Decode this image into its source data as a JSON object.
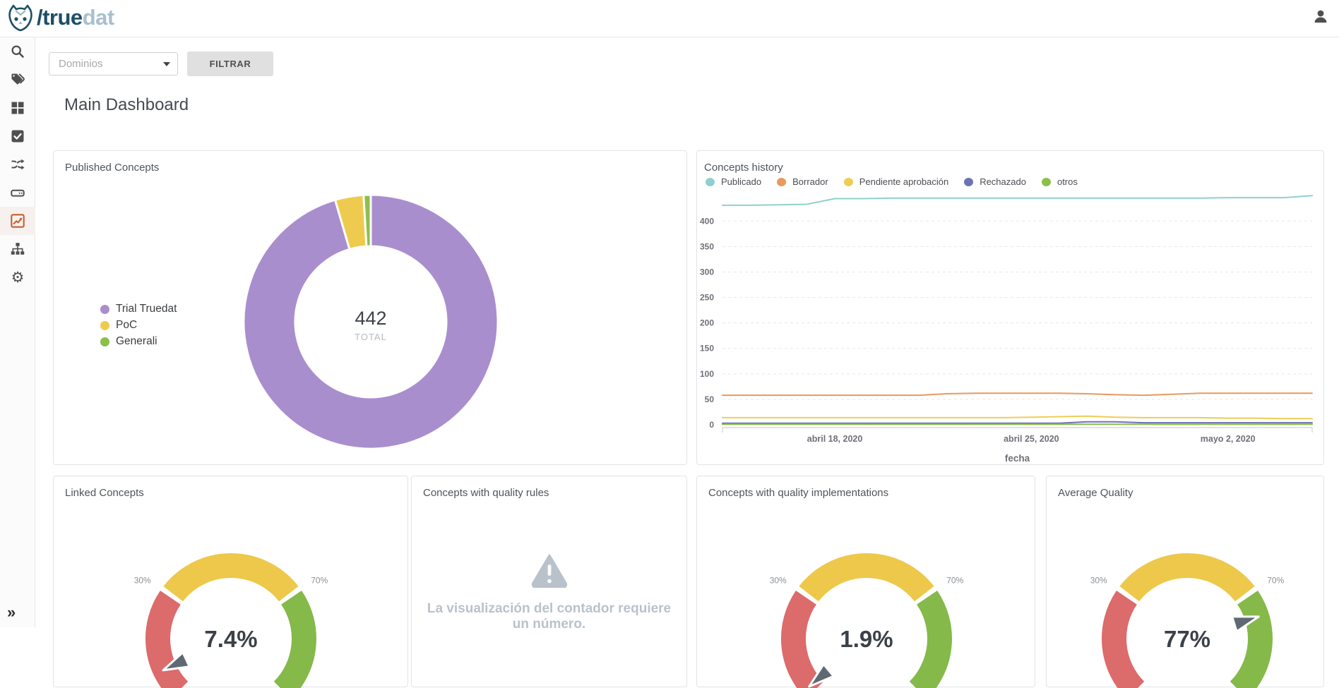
{
  "header": {
    "logo_slash_true": "/true",
    "logo_dat": "dat"
  },
  "sidebar": {
    "items": [
      {
        "name": "search",
        "icon": "search-icon",
        "active": false
      },
      {
        "name": "concepts",
        "icon": "tags-icon",
        "active": false
      },
      {
        "name": "structures",
        "icon": "grid-icon",
        "active": false
      },
      {
        "name": "rules",
        "icon": "check-square-icon",
        "active": false
      },
      {
        "name": "lineage",
        "icon": "shuffle-icon",
        "active": false
      },
      {
        "name": "sources",
        "icon": "drive-icon",
        "active": false
      },
      {
        "name": "dashboards",
        "icon": "line-chart-icon",
        "active": true
      },
      {
        "name": "organization",
        "icon": "sitemap-icon",
        "active": false
      },
      {
        "name": "settings",
        "icon": "gear-icon",
        "active": false
      }
    ],
    "expand_label": "»"
  },
  "toolbar": {
    "domain_placeholder": "Dominios",
    "filter_label": "FILTRAR"
  },
  "page_title": "Main Dashboard",
  "chart_data": [
    {
      "id": "published_concepts",
      "type": "pie",
      "title": "Published Concepts",
      "center_value": "442",
      "center_label": "TOTAL",
      "legend_position": "left",
      "series": [
        {
          "label": "Trial Truedat",
          "value": 422,
          "color": "#a98ecd"
        },
        {
          "label": "PoC",
          "value": 16,
          "color": "#eecb4e"
        },
        {
          "label": "Generali",
          "value": 4,
          "color": "#8cbf4b"
        }
      ]
    },
    {
      "id": "concepts_history",
      "type": "line",
      "title": "Concepts history",
      "xlabel": "fecha",
      "ylim": [
        0,
        460
      ],
      "yticks": [
        0,
        50,
        100,
        150,
        200,
        250,
        300,
        350,
        400
      ],
      "grid": true,
      "legend_position": "top",
      "xtick_indices": [
        4,
        11,
        18
      ],
      "xtick_labels": [
        "abril 18, 2020",
        "abril 25, 2020",
        "mayo 2, 2020"
      ],
      "series": [
        {
          "name": "Publicado",
          "color": "#8ed1ce",
          "values": [
            431,
            431,
            432,
            433,
            444,
            444,
            445,
            445,
            445,
            445,
            445,
            445,
            445,
            445,
            445,
            445,
            445,
            445,
            446,
            446,
            446,
            450
          ]
        },
        {
          "name": "Borrador",
          "color": "#e8995f",
          "values": [
            58,
            58,
            58,
            58,
            58,
            58,
            58,
            58,
            61,
            62,
            62,
            62,
            62,
            61,
            59,
            58,
            60,
            62,
            62,
            62,
            62,
            62
          ]
        },
        {
          "name": "Pendiente aprobación",
          "color": "#eecd55",
          "values": [
            14,
            14,
            14,
            14,
            14,
            14,
            14,
            14,
            14,
            14,
            14,
            15,
            16,
            17,
            15,
            14,
            14,
            14,
            13,
            13,
            12,
            12
          ]
        },
        {
          "name": "Rechazado",
          "color": "#6d72b3",
          "values": [
            3,
            3,
            3,
            3,
            3,
            3,
            3,
            3,
            3,
            3,
            3,
            3,
            3,
            6,
            6,
            4,
            4,
            4,
            4,
            4,
            4,
            4
          ]
        },
        {
          "name": "otros",
          "color": "#8cbf4b",
          "values": [
            1,
            1,
            1,
            1,
            1,
            1,
            1,
            1,
            1,
            1,
            1,
            1,
            1,
            1,
            1,
            1,
            1,
            1,
            1,
            1,
            1,
            1
          ]
        }
      ]
    },
    {
      "id": "linked_concepts",
      "type": "gauge",
      "title": "Linked Concepts",
      "value": 7.4,
      "display": "7.4%",
      "band_labels": [
        "30%",
        "70%"
      ],
      "bands": [
        {
          "to": 30,
          "color": "#dc6b6b"
        },
        {
          "to": 70,
          "color": "#edc84a"
        },
        {
          "to": 100,
          "color": "#85b94a"
        }
      ]
    },
    {
      "id": "quality_rules",
      "type": "message",
      "title": "Concepts with quality rules",
      "message": "La visualización del contador requiere un número.",
      "icon": "warning-icon",
      "icon_color": "#b9c2cb"
    },
    {
      "id": "quality_implementations",
      "type": "gauge",
      "title": "Concepts with quality implementations",
      "value": 1.9,
      "display": "1.9%",
      "band_labels": [
        "30%",
        "70%"
      ],
      "bands": [
        {
          "to": 30,
          "color": "#dc6b6b"
        },
        {
          "to": 70,
          "color": "#edc84a"
        },
        {
          "to": 100,
          "color": "#85b94a"
        }
      ]
    },
    {
      "id": "average_quality",
      "type": "gauge",
      "title": "Average Quality",
      "value": 77,
      "display": "77%",
      "band_labels": [
        "30%",
        "70%"
      ],
      "bands": [
        {
          "to": 30,
          "color": "#dc6b6b"
        },
        {
          "to": 70,
          "color": "#edc84a"
        },
        {
          "to": 100,
          "color": "#85b94a"
        }
      ]
    }
  ]
}
